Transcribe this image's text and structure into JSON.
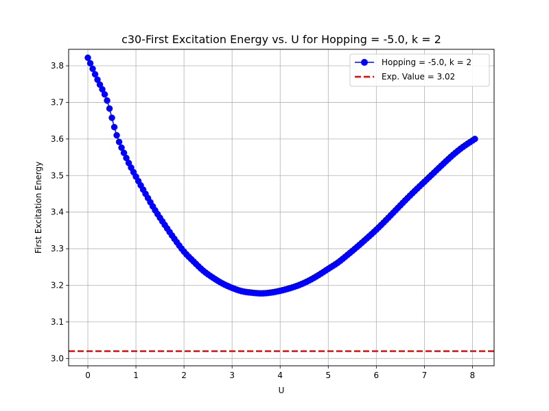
{
  "chart_data": {
    "type": "line",
    "title": "c30-First Excitation Energy vs. U for Hopping = -5.0, k = 2",
    "xlabel": "U",
    "ylabel": "First Excitation Energy",
    "xlim": [
      -0.4,
      8.45
    ],
    "ylim": [
      2.98,
      3.845
    ],
    "xticks": [
      0,
      1,
      2,
      3,
      4,
      5,
      6,
      7,
      8
    ],
    "yticks": [
      3.0,
      3.1,
      3.2,
      3.3,
      3.4,
      3.5,
      3.6,
      3.7,
      3.8
    ],
    "xtick_labels": [
      "0",
      "1",
      "2",
      "3",
      "4",
      "5",
      "6",
      "7",
      "8"
    ],
    "ytick_labels": [
      "3.0",
      "3.1",
      "3.2",
      "3.3",
      "3.4",
      "3.5",
      "3.6",
      "3.7",
      "3.8"
    ],
    "grid": true,
    "legend_position": "top-right",
    "series": [
      {
        "name": "Hopping = -5.0, k = 2",
        "color": "#0000ff",
        "style": "solid-line-with-circle-markers",
        "x_start": 0.0,
        "x_end": 8.05,
        "x_step": 0.05,
        "knots": [
          [
            0.0,
            3.822
          ],
          [
            0.2,
            3.762
          ],
          [
            0.4,
            3.705
          ],
          [
            0.6,
            3.61
          ],
          [
            0.8,
            3.548
          ],
          [
            1.0,
            3.497
          ],
          [
            1.2,
            3.45
          ],
          [
            1.4,
            3.405
          ],
          [
            1.6,
            3.365
          ],
          [
            1.8,
            3.327
          ],
          [
            2.0,
            3.292
          ],
          [
            2.2,
            3.265
          ],
          [
            2.4,
            3.24
          ],
          [
            2.6,
            3.221
          ],
          [
            2.8,
            3.205
          ],
          [
            3.0,
            3.193
          ],
          [
            3.2,
            3.184
          ],
          [
            3.4,
            3.18
          ],
          [
            3.6,
            3.178
          ],
          [
            3.8,
            3.18
          ],
          [
            4.0,
            3.185
          ],
          [
            4.2,
            3.192
          ],
          [
            4.4,
            3.201
          ],
          [
            4.6,
            3.213
          ],
          [
            4.8,
            3.228
          ],
          [
            5.0,
            3.245
          ],
          [
            5.2,
            3.262
          ],
          [
            5.4,
            3.283
          ],
          [
            5.6,
            3.305
          ],
          [
            5.8,
            3.328
          ],
          [
            6.0,
            3.352
          ],
          [
            6.2,
            3.378
          ],
          [
            6.4,
            3.405
          ],
          [
            6.6,
            3.432
          ],
          [
            6.8,
            3.458
          ],
          [
            7.0,
            3.483
          ],
          [
            7.2,
            3.508
          ],
          [
            7.4,
            3.533
          ],
          [
            7.6,
            3.557
          ],
          [
            7.8,
            3.578
          ],
          [
            8.05,
            3.6
          ]
        ]
      },
      {
        "name": "Exp. Value = 3.02",
        "color": "#ff0000",
        "style": "dashed-horizontal-line",
        "y": 3.02
      }
    ]
  }
}
